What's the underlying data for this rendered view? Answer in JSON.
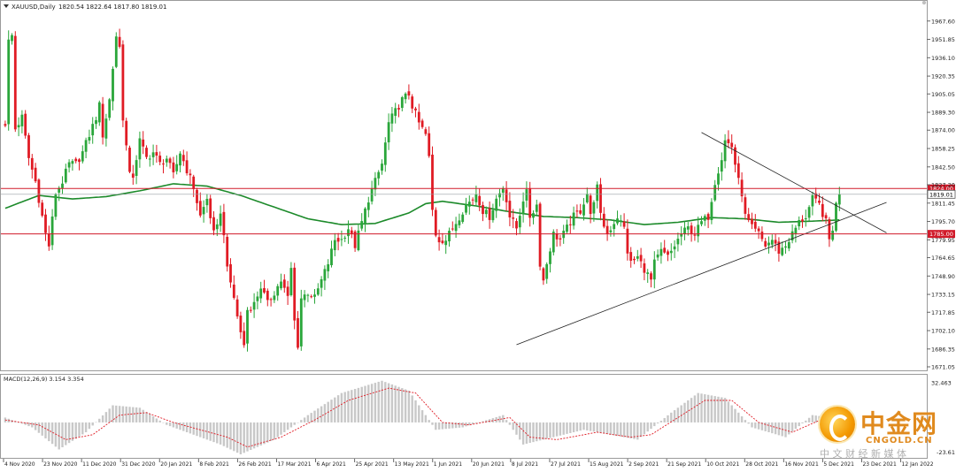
{
  "chart_data": {
    "type": "candlestick",
    "header": {
      "symbol_label": "XAUUSD,Daily",
      "ohlc_text": "1820.54 1822.64 1817.80 1819.01"
    },
    "y_ticks": [
      1967.6,
      1951.85,
      1936.1,
      1920.35,
      1905.05,
      1889.3,
      1874.0,
      1858.25,
      1842.5,
      1827.2,
      1811.45,
      1795.7,
      1779.95,
      1764.65,
      1748.9,
      1733.15,
      1717.85,
      1702.1,
      1686.35,
      1671.05
    ],
    "y_range": [
      1671.05,
      1975.0
    ],
    "horizontal_levels": [
      {
        "value": 1824.0,
        "label": "1824.00",
        "color": "#d11a2a"
      },
      {
        "value": 1785.0,
        "label": "1785.00",
        "color": "#d11a2a"
      }
    ],
    "current_price": {
      "value": 1819.01,
      "label": "1819.01"
    },
    "x_tick_labels": [
      "4 Nov 2020",
      "23 Nov 2020",
      "11 Dec 2020",
      "31 Dec 2020",
      "20 Jan 2021",
      "8 Feb 2021",
      "26 Feb 2021",
      "17 Mar 2021",
      "6 Apr 2021",
      "25 Apr 2021",
      "13 May 2021",
      "1 Jun 2021",
      "20 Jun 2021",
      "8 Jul 2021",
      "27 Jul 2021",
      "15 Aug 2021",
      "2 Sep 2021",
      "21 Sep 2021",
      "10 Oct 2021",
      "28 Oct 2021",
      "16 Nov 2021",
      "5 Dec 2021",
      "23 Dec 2021",
      "12 Jan 2022"
    ],
    "price_anchors": [
      [
        0,
        1880
      ],
      [
        1,
        1950
      ],
      [
        2,
        1955
      ],
      [
        3,
        1875
      ],
      [
        5,
        1885
      ],
      [
        7,
        1850
      ],
      [
        9,
        1830
      ],
      [
        11,
        1800
      ],
      [
        12,
        1785
      ],
      [
        13,
        1775
      ],
      [
        15,
        1820
      ],
      [
        17,
        1830
      ],
      [
        19,
        1845
      ],
      [
        21,
        1845
      ],
      [
        23,
        1855
      ],
      [
        25,
        1870
      ],
      [
        27,
        1885
      ],
      [
        28,
        1895
      ],
      [
        29,
        1870
      ],
      [
        31,
        1900
      ],
      [
        33,
        1955
      ],
      [
        34,
        1945
      ],
      [
        35,
        1885
      ],
      [
        36,
        1860
      ],
      [
        37,
        1835
      ],
      [
        38,
        1835
      ],
      [
        40,
        1865
      ],
      [
        42,
        1850
      ],
      [
        44,
        1855
      ],
      [
        46,
        1845
      ],
      [
        48,
        1850
      ],
      [
        50,
        1835
      ],
      [
        52,
        1855
      ],
      [
        54,
        1840
      ],
      [
        56,
        1825
      ],
      [
        58,
        1800
      ],
      [
        60,
        1815
      ],
      [
        61,
        1800
      ],
      [
        62,
        1785
      ],
      [
        63,
        1790
      ],
      [
        64,
        1805
      ],
      [
        66,
        1760
      ],
      [
        67,
        1740
      ],
      [
        68,
        1730
      ],
      [
        69,
        1715
      ],
      [
        70,
        1700
      ],
      [
        71,
        1690
      ],
      [
        72,
        1720
      ],
      [
        74,
        1725
      ],
      [
        76,
        1740
      ],
      [
        78,
        1725
      ],
      [
        80,
        1735
      ],
      [
        82,
        1745
      ],
      [
        84,
        1730
      ],
      [
        85,
        1755
      ],
      [
        86,
        1710
      ],
      [
        87,
        1690
      ],
      [
        88,
        1730
      ],
      [
        90,
        1735
      ],
      [
        92,
        1730
      ],
      [
        94,
        1745
      ],
      [
        96,
        1760
      ],
      [
        98,
        1780
      ],
      [
        100,
        1780
      ],
      [
        102,
        1790
      ],
      [
        104,
        1775
      ],
      [
        106,
        1795
      ],
      [
        108,
        1815
      ],
      [
        110,
        1830
      ],
      [
        112,
        1845
      ],
      [
        114,
        1880
      ],
      [
        116,
        1890
      ],
      [
        118,
        1900
      ],
      [
        120,
        1905
      ],
      [
        121,
        1895
      ],
      [
        123,
        1880
      ],
      [
        125,
        1870
      ],
      [
        126,
        1850
      ],
      [
        127,
        1805
      ],
      [
        128,
        1785
      ],
      [
        129,
        1780
      ],
      [
        131,
        1780
      ],
      [
        133,
        1790
      ],
      [
        135,
        1800
      ],
      [
        137,
        1810
      ],
      [
        139,
        1815
      ],
      [
        140,
        1820
      ],
      [
        142,
        1805
      ],
      [
        144,
        1800
      ],
      [
        146,
        1815
      ],
      [
        148,
        1825
      ],
      [
        149,
        1815
      ],
      [
        150,
        1800
      ],
      [
        152,
        1790
      ],
      [
        154,
        1815
      ],
      [
        155,
        1820
      ],
      [
        156,
        1800
      ],
      [
        158,
        1810
      ],
      [
        159,
        1760
      ],
      [
        160,
        1745
      ],
      [
        161,
        1760
      ],
      [
        163,
        1785
      ],
      [
        165,
        1780
      ],
      [
        167,
        1790
      ],
      [
        169,
        1800
      ],
      [
        171,
        1805
      ],
      [
        173,
        1820
      ],
      [
        174,
        1800
      ],
      [
        175,
        1815
      ],
      [
        176,
        1825
      ],
      [
        177,
        1800
      ],
      [
        179,
        1785
      ],
      [
        180,
        1790
      ],
      [
        182,
        1800
      ],
      [
        184,
        1790
      ],
      [
        185,
        1770
      ],
      [
        186,
        1760
      ],
      [
        188,
        1765
      ],
      [
        190,
        1755
      ],
      [
        192,
        1745
      ],
      [
        193,
        1760
      ],
      [
        195,
        1770
      ],
      [
        197,
        1765
      ],
      [
        199,
        1775
      ],
      [
        201,
        1785
      ],
      [
        203,
        1790
      ],
      [
        205,
        1785
      ],
      [
        207,
        1795
      ],
      [
        209,
        1800
      ],
      [
        211,
        1830
      ],
      [
        213,
        1850
      ],
      [
        214,
        1865
      ],
      [
        216,
        1860
      ],
      [
        218,
        1830
      ],
      [
        219,
        1820
      ],
      [
        220,
        1800
      ],
      [
        222,
        1790
      ],
      [
        224,
        1785
      ],
      [
        226,
        1775
      ],
      [
        228,
        1780
      ],
      [
        230,
        1770
      ],
      [
        232,
        1775
      ],
      [
        234,
        1785
      ],
      [
        236,
        1795
      ],
      [
        238,
        1800
      ],
      [
        240,
        1815
      ],
      [
        242,
        1810
      ],
      [
        244,
        1795
      ],
      [
        245,
        1780
      ],
      [
        246,
        1790
      ],
      [
        247,
        1810
      ],
      [
        248,
        1819
      ]
    ],
    "ma_anchors": [
      [
        0,
        1807
      ],
      [
        10,
        1818
      ],
      [
        20,
        1815
      ],
      [
        30,
        1817
      ],
      [
        40,
        1822
      ],
      [
        50,
        1828
      ],
      [
        60,
        1826
      ],
      [
        70,
        1818
      ],
      [
        80,
        1808
      ],
      [
        90,
        1798
      ],
      [
        100,
        1793
      ],
      [
        110,
        1794
      ],
      [
        120,
        1803
      ],
      [
        125,
        1811
      ],
      [
        130,
        1813
      ],
      [
        140,
        1809
      ],
      [
        150,
        1804
      ],
      [
        160,
        1800
      ],
      [
        170,
        1799
      ],
      [
        180,
        1797
      ],
      [
        190,
        1793
      ],
      [
        200,
        1795
      ],
      [
        210,
        1799
      ],
      [
        220,
        1798
      ],
      [
        230,
        1795
      ],
      [
        240,
        1796
      ],
      [
        248,
        1797
      ]
    ],
    "trendlines": [
      {
        "from": [
          152,
          1690
        ],
        "to": [
          262,
          1812
        ]
      },
      {
        "from": [
          207,
          1872
        ],
        "to": [
          262,
          1786
        ]
      }
    ],
    "indicator": {
      "label": "MACD(12,26,9) 3.154 3.354",
      "y_ticks": [
        32.463
      ],
      "bottom_tick": "-23.61",
      "range": [
        -26,
        36
      ],
      "hist_anchors": [
        [
          0,
          4
        ],
        [
          8,
          -4
        ],
        [
          16,
          -22
        ],
        [
          24,
          -8
        ],
        [
          32,
          14
        ],
        [
          40,
          12
        ],
        [
          48,
          -2
        ],
        [
          56,
          -10
        ],
        [
          64,
          -18
        ],
        [
          70,
          -26
        ],
        [
          80,
          -14
        ],
        [
          90,
          6
        ],
        [
          100,
          24
        ],
        [
          112,
          34
        ],
        [
          120,
          26
        ],
        [
          128,
          -6
        ],
        [
          136,
          -4
        ],
        [
          148,
          6
        ],
        [
          154,
          -18
        ],
        [
          160,
          -14
        ],
        [
          172,
          -6
        ],
        [
          180,
          -10
        ],
        [
          188,
          -14
        ],
        [
          198,
          8
        ],
        [
          206,
          24
        ],
        [
          214,
          20
        ],
        [
          222,
          -4
        ],
        [
          232,
          -12
        ],
        [
          240,
          6
        ],
        [
          248,
          3
        ]
      ],
      "signal_anchors": [
        [
          0,
          2
        ],
        [
          10,
          -2
        ],
        [
          18,
          -14
        ],
        [
          26,
          -10
        ],
        [
          34,
          6
        ],
        [
          42,
          8
        ],
        [
          50,
          0
        ],
        [
          58,
          -6
        ],
        [
          66,
          -12
        ],
        [
          72,
          -20
        ],
        [
          82,
          -12
        ],
        [
          92,
          2
        ],
        [
          102,
          18
        ],
        [
          114,
          28
        ],
        [
          122,
          24
        ],
        [
          130,
          0
        ],
        [
          138,
          -2
        ],
        [
          150,
          4
        ],
        [
          156,
          -12
        ],
        [
          164,
          -14
        ],
        [
          176,
          -8
        ],
        [
          186,
          -12
        ],
        [
          192,
          -10
        ],
        [
          200,
          4
        ],
        [
          208,
          18
        ],
        [
          216,
          18
        ],
        [
          224,
          0
        ],
        [
          234,
          -8
        ],
        [
          244,
          4
        ],
        [
          248,
          3.35
        ]
      ]
    }
  },
  "watermark": {
    "cn_brand": "中金网",
    "domain": "CNGOLD.CN",
    "tagline": "中 文 财 经 新 媒 体"
  }
}
